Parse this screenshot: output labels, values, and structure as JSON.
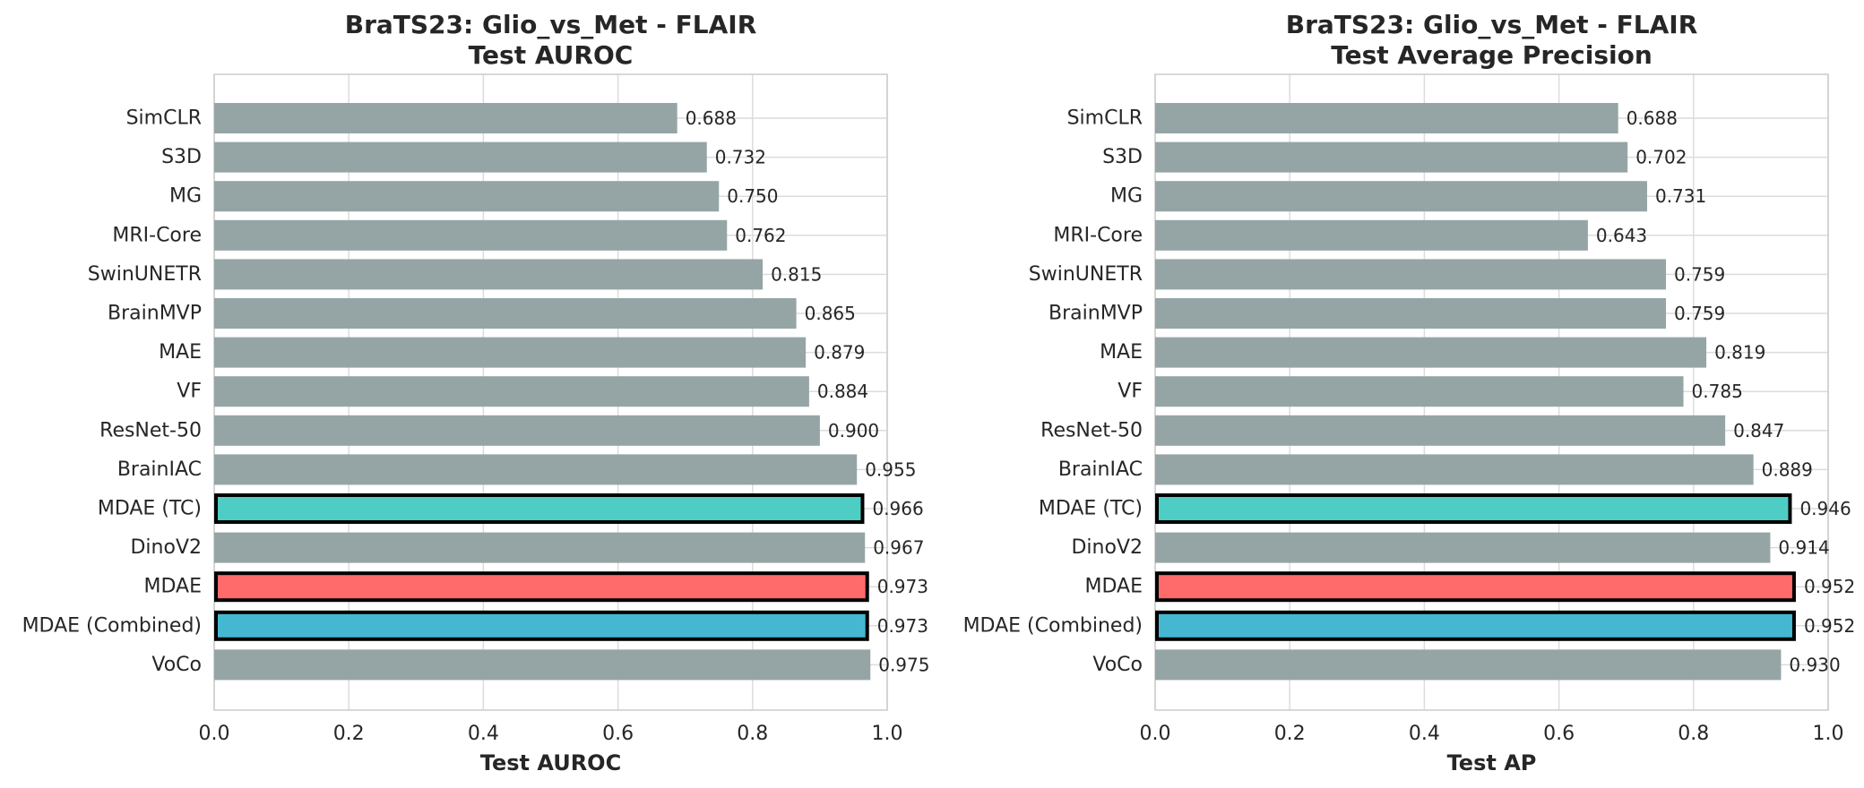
{
  "chart_data": [
    {
      "type": "bar",
      "orientation": "horizontal",
      "title": [
        "BraTS23: Glio_vs_Met - FLAIR",
        "Test AUROC"
      ],
      "xlabel": "Test AUROC",
      "ylabel": "",
      "xlim": [
        0.0,
        1.0
      ],
      "xticks": [
        "0.0",
        "0.2",
        "0.4",
        "0.6",
        "0.8",
        "1.0"
      ],
      "grid": true,
      "categories": [
        "SimCLR",
        "S3D",
        "MG",
        "MRI-Core",
        "SwinUNETR",
        "BrainMVP",
        "MAE",
        "VF",
        "ResNet-50",
        "BrainIAC",
        "MDAE (TC)",
        "DinoV2",
        "MDAE",
        "MDAE (Combined)",
        "VoCo"
      ],
      "values": [
        0.688,
        0.732,
        0.75,
        0.762,
        0.815,
        0.865,
        0.879,
        0.884,
        0.9,
        0.955,
        0.966,
        0.967,
        0.973,
        0.973,
        0.975
      ],
      "value_labels": [
        "0.688",
        "0.732",
        "0.750",
        "0.762",
        "0.815",
        "0.865",
        "0.879",
        "0.884",
        "0.900",
        "0.955",
        "0.966",
        "0.967",
        "0.973",
        "0.973",
        "0.975"
      ],
      "colors": [
        "#95a5a6",
        "#95a5a6",
        "#95a5a6",
        "#95a5a6",
        "#95a5a6",
        "#95a5a6",
        "#95a5a6",
        "#95a5a6",
        "#95a5a6",
        "#95a5a6",
        "#4ecdc4",
        "#95a5a6",
        "#ff6b6b",
        "#45b7d1",
        "#95a5a6"
      ],
      "highlighted": [
        false,
        false,
        false,
        false,
        false,
        false,
        false,
        false,
        false,
        false,
        true,
        false,
        true,
        true,
        false
      ]
    },
    {
      "type": "bar",
      "orientation": "horizontal",
      "title": [
        "BraTS23: Glio_vs_Met - FLAIR",
        "Test Average Precision"
      ],
      "xlabel": "Test AP",
      "ylabel": "",
      "xlim": [
        0.0,
        1.0
      ],
      "xticks": [
        "0.0",
        "0.2",
        "0.4",
        "0.6",
        "0.8",
        "1.0"
      ],
      "grid": true,
      "categories": [
        "SimCLR",
        "S3D",
        "MG",
        "MRI-Core",
        "SwinUNETR",
        "BrainMVP",
        "MAE",
        "VF",
        "ResNet-50",
        "BrainIAC",
        "MDAE (TC)",
        "DinoV2",
        "MDAE",
        "MDAE (Combined)",
        "VoCo"
      ],
      "values": [
        0.688,
        0.702,
        0.731,
        0.643,
        0.759,
        0.759,
        0.819,
        0.785,
        0.847,
        0.889,
        0.946,
        0.914,
        0.952,
        0.952,
        0.93
      ],
      "value_labels": [
        "0.688",
        "0.702",
        "0.731",
        "0.643",
        "0.759",
        "0.759",
        "0.819",
        "0.785",
        "0.847",
        "0.889",
        "0.946",
        "0.914",
        "0.952",
        "0.952",
        "0.930"
      ],
      "colors": [
        "#95a5a6",
        "#95a5a6",
        "#95a5a6",
        "#95a5a6",
        "#95a5a6",
        "#95a5a6",
        "#95a5a6",
        "#95a5a6",
        "#95a5a6",
        "#95a5a6",
        "#4ecdc4",
        "#95a5a6",
        "#ff6b6b",
        "#45b7d1",
        "#95a5a6"
      ],
      "highlighted": [
        false,
        false,
        false,
        false,
        false,
        false,
        false,
        false,
        false,
        false,
        true,
        false,
        true,
        true,
        false
      ]
    }
  ]
}
